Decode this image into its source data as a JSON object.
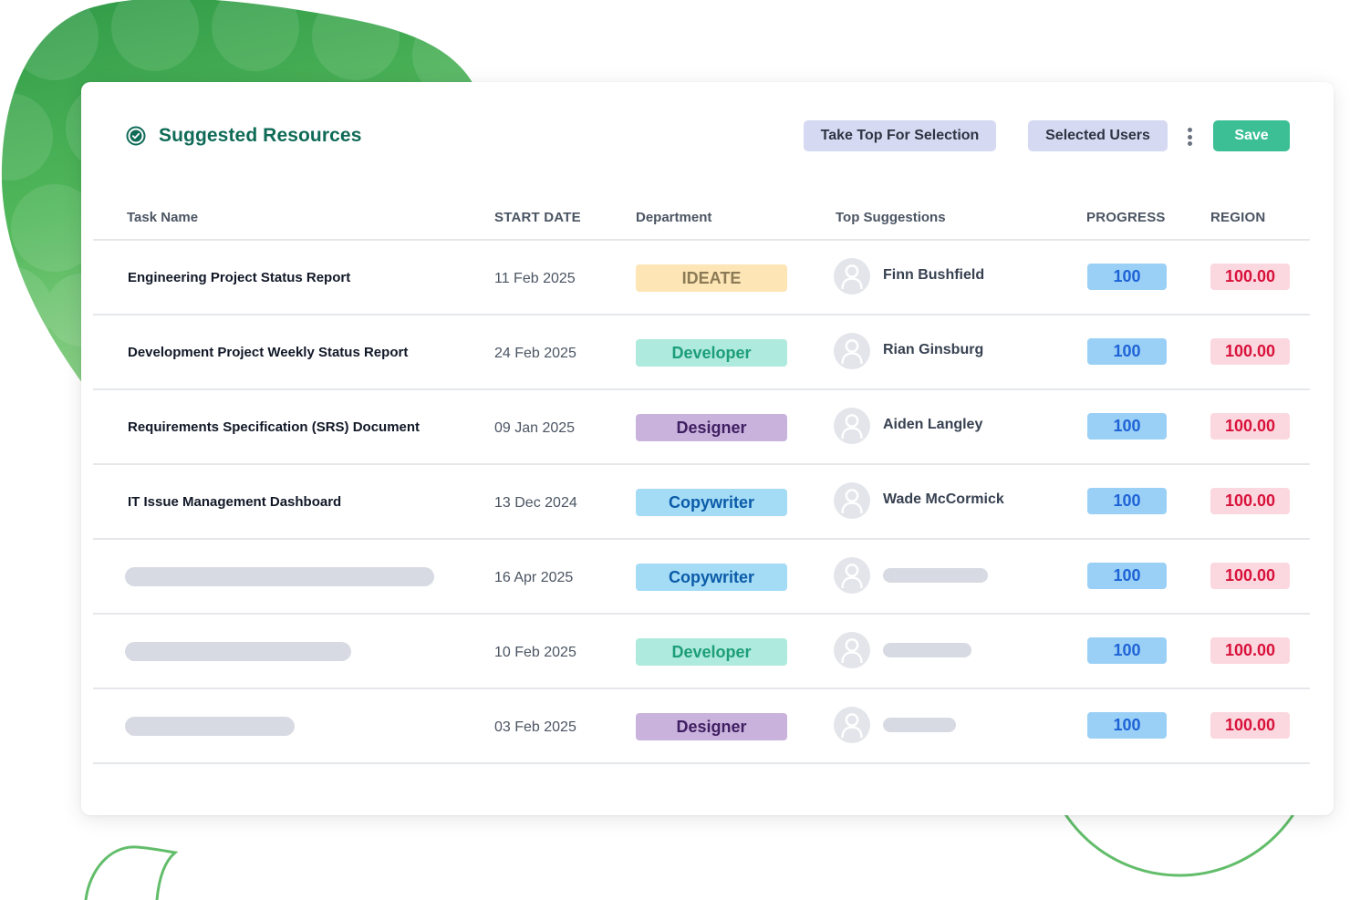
{
  "header": {
    "title": "Suggested Resources",
    "take_top_label": "Take Top For Selection",
    "selected_users_label": "Selected Users",
    "save_label": "Save"
  },
  "table": {
    "columns": [
      "Task Name",
      "START DATE",
      "Department",
      "Top Suggestions",
      "PROGRESS",
      "REGION"
    ],
    "rows": [
      {
        "task": "Engineering Project Status Report",
        "date": "11 Feb 2025",
        "dept": "IDEATE",
        "user": "Finn Bushfield",
        "progress": "100",
        "region": "100.00"
      },
      {
        "task": "Development Project Weekly Status Report",
        "date": "24 Feb 2025",
        "dept": "Developer",
        "user": "Rian Ginsburg",
        "progress": "100",
        "region": "100.00"
      },
      {
        "task": "Requirements Specification (SRS) Document",
        "date": "09 Jan 2025",
        "dept": "Designer",
        "user": "Aiden Langley",
        "progress": "100",
        "region": "100.00"
      },
      {
        "task": "IT Issue Management Dashboard",
        "date": "13 Dec 2024",
        "dept": "Copywriter",
        "user": "Wade McCormick",
        "progress": "100",
        "region": "100.00"
      },
      {
        "task": "",
        "date": "16 Apr 2025",
        "dept": "Copywriter",
        "user": "",
        "progress": "100",
        "region": "100.00"
      },
      {
        "task": "",
        "date": "10 Feb 2025",
        "dept": "Developer",
        "user": "",
        "progress": "100",
        "region": "100.00"
      },
      {
        "task": "",
        "date": "03 Feb 2025",
        "dept": "Designer",
        "user": "",
        "progress": "100",
        "region": "100.00"
      }
    ]
  },
  "colors": {
    "title": "#0f6b57",
    "save_button": "#3cbf95",
    "secondary_button": "#d5d9f2",
    "progress_bg": "#9bd0f6",
    "progress_text": "#1e63d6",
    "region_bg": "#fbd8df",
    "region_text": "#d8123b",
    "dept": {
      "IDEATE": {
        "bg": "#fde5b5",
        "fg": "#8a7a55"
      },
      "Developer": {
        "bg": "#aeeadd",
        "fg": "#1c9e78"
      },
      "Designer": {
        "bg": "#c9b3dc",
        "fg": "#3f1e62"
      },
      "Copywriter": {
        "bg": "#a4dcf6",
        "fg": "#0b5ba8"
      }
    }
  },
  "icons": {
    "title": "check-circle-icon",
    "avatar": "user-avatar-icon",
    "more": "more-vertical-icon"
  }
}
